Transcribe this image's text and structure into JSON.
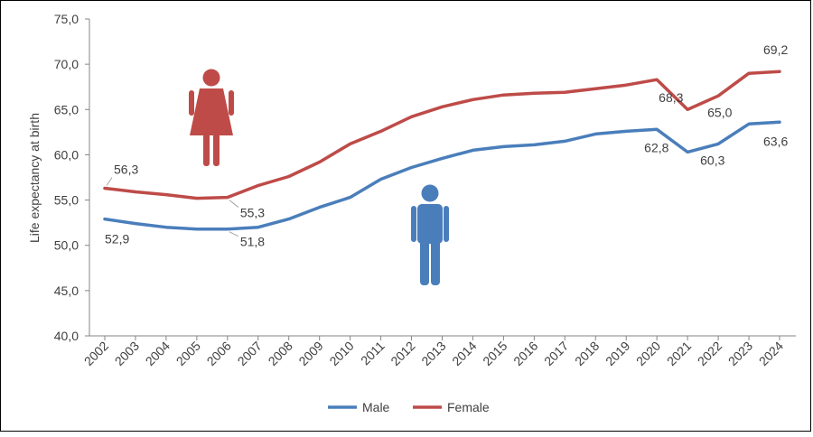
{
  "chart_data": {
    "type": "line",
    "title": "",
    "xlabel": "",
    "ylabel": "Life expectancy at birth",
    "ylim": [
      40,
      75
    ],
    "yticks": [
      "40,0",
      "45,0",
      "50,0",
      "55,0",
      "60,0",
      "65,0",
      "70,0",
      "75,0"
    ],
    "categories": [
      "2002",
      "2003",
      "2004",
      "2005",
      "2006",
      "2007",
      "2008",
      "2009",
      "2010",
      "2011",
      "2012",
      "2013",
      "2014",
      "2015",
      "2016",
      "2017",
      "2018",
      "2019",
      "2020",
      "2021",
      "2022",
      "2023",
      "2024"
    ],
    "series": [
      {
        "name": "Male",
        "color": "#4A7EBB",
        "values": [
          52.9,
          52.4,
          52.0,
          51.8,
          51.8,
          52.0,
          52.9,
          54.2,
          55.3,
          57.3,
          58.6,
          59.6,
          60.5,
          60.9,
          61.1,
          61.5,
          62.3,
          62.6,
          62.8,
          60.3,
          61.2,
          63.4,
          63.6
        ]
      },
      {
        "name": "Female",
        "color": "#BE4B48",
        "values": [
          56.3,
          55.9,
          55.6,
          55.2,
          55.3,
          56.6,
          57.6,
          59.2,
          61.2,
          62.6,
          64.2,
          65.3,
          66.1,
          66.6,
          66.8,
          66.9,
          67.3,
          67.7,
          68.3,
          65.0,
          66.5,
          69.0,
          69.2
        ]
      }
    ],
    "annotations": [
      {
        "series": "Female",
        "year": "2002",
        "text": "56,3"
      },
      {
        "series": "Female",
        "year": "2006",
        "text": "55,3"
      },
      {
        "series": "Female",
        "year": "2020",
        "text": "68,3"
      },
      {
        "series": "Female",
        "year": "2021",
        "text": "65,0"
      },
      {
        "series": "Female",
        "year": "2024",
        "text": "69,2"
      },
      {
        "series": "Male",
        "year": "2002",
        "text": "52,9"
      },
      {
        "series": "Male",
        "year": "2006",
        "text": "51,8"
      },
      {
        "series": "Male",
        "year": "2020",
        "text": "62,8"
      },
      {
        "series": "Male",
        "year": "2021",
        "text": "60,3"
      },
      {
        "series": "Male",
        "year": "2024",
        "text": "63,6"
      }
    ],
    "legend": [
      "Male",
      "Female"
    ],
    "legend_position": "bottom",
    "icons": [
      {
        "name": "female-person-icon",
        "color": "#BE4B48"
      },
      {
        "name": "male-person-icon",
        "color": "#4A7EBB"
      }
    ]
  }
}
